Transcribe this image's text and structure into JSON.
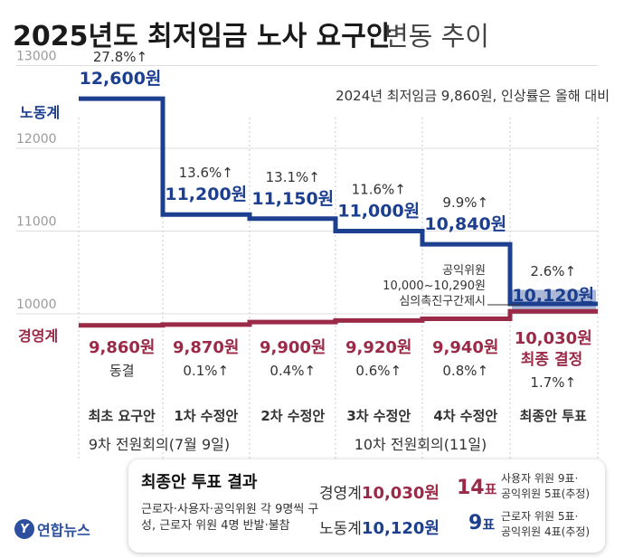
{
  "title": {
    "main": "2025년도 최저임금 노사 요구안",
    "sub": "변동 추이"
  },
  "note": "2024년 최저임금 9,860원, 인상률은 올해 대비",
  "labels": {
    "labor": "노동계",
    "mgmt": "경영계"
  },
  "colors": {
    "labor": "#1d3f8f",
    "mgmt": "#9a2a48",
    "band": "#aab8d6"
  },
  "chart_data": {
    "type": "line",
    "categories": [
      "최초 요구안",
      "1차 수정안",
      "2차 수정안",
      "3차 수정안",
      "4차 수정안",
      "최종안 투표"
    ],
    "ylim": [
      10000,
      13000
    ],
    "y_ticks": [
      "10000",
      "11000",
      "12000",
      "13000"
    ],
    "series": [
      {
        "name": "노동계",
        "values": [
          12600,
          11200,
          11150,
          11000,
          10840,
          10120
        ],
        "value_labels": [
          "12,600원",
          "11,200원",
          "11,150원",
          "11,000원",
          "10,840원",
          "10,120원"
        ],
        "pct_labels": [
          "27.8%↑",
          "13.6%↑",
          "13.1%↑",
          "11.6%↑",
          "9.9%↑",
          "2.6%↑"
        ]
      },
      {
        "name": "경영계",
        "values": [
          9860,
          9870,
          9900,
          9920,
          9940,
          10030
        ],
        "value_labels": [
          "9,860원",
          "9,870원",
          "9,900원",
          "9,920원",
          "9,940원",
          "10,030원"
        ],
        "pct_labels": [
          "동결",
          "0.1%↑",
          "0.4%↑",
          "0.6%↑",
          "0.8%↑",
          "1.7%↑"
        ]
      }
    ],
    "band": {
      "low": 10000,
      "high": 10290,
      "label_lines": [
        "공익위원",
        "10,000~10,290원",
        "심의촉진구간제시"
      ]
    },
    "final_decision": "최종 결정",
    "meetings": [
      "9차 전원회의(7월 9일)",
      "10차 전원회의(11일)"
    ]
  },
  "result": {
    "title": "최종안 투표 결과",
    "desc": "근로자·사용자·공익위원 각 9명씩 구성, 근로자 위원 4명 반발·불참",
    "mgmt": {
      "label": "경영계",
      "value": "10,030원",
      "votes": "14",
      "detail": [
        "사용자 위원 9표·",
        "공익위원 5표(추정)"
      ]
    },
    "labor": {
      "label": "노동계",
      "value": "10,120원",
      "votes": "9",
      "detail": [
        "근로자 위원 5표·",
        "공익위원 4표(추정)"
      ]
    },
    "vote_unit": "표"
  },
  "logo": {
    "mark": "Y",
    "text": "연합뉴스"
  }
}
